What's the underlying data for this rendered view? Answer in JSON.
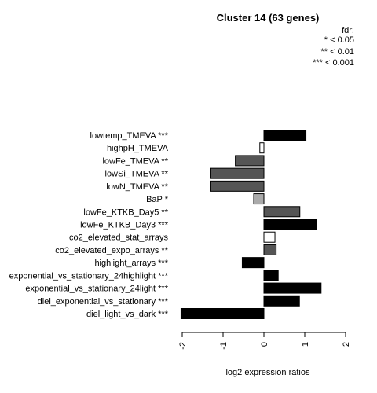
{
  "chart_data": {
    "type": "bar",
    "orientation": "horizontal",
    "title": "Cluster 14 (63 genes)",
    "xlabel": "log2 expression ratios",
    "xlim": [
      -2,
      2
    ],
    "xticks": [
      -2,
      -1,
      0,
      1,
      2
    ],
    "xtick_labels": [
      "-2",
      "-1",
      "0",
      "1",
      "2"
    ],
    "grid": false,
    "legend": {
      "placement": "top-right",
      "title": "fdr:",
      "entries": [
        "* < 0.05",
        "** < 0.01",
        "*** < 0.001"
      ]
    },
    "categories": [
      "lowtemp_TMEVA ***",
      "highpH_TMEVA",
      "lowFe_TMEVA **",
      "lowSi_TMEVA **",
      "lowN_TMEVA **",
      "BaP *",
      "lowFe_KTKB_Day5 **",
      "lowFe_KTKB_Day3 ***",
      "co2_elevated_stat_arrays",
      "co2_elevated_expo_arrays **",
      "highlight_arrays ***",
      "exponential_vs_stationary_24highlight ***",
      "exponential_vs_stationary_24light ***",
      "diel_exponential_vs_stationary ***",
      "diel_light_vs_dark ***"
    ],
    "values": [
      1.03,
      -0.1,
      -0.7,
      -1.3,
      -1.3,
      -0.25,
      0.88,
      1.28,
      0.27,
      0.3,
      -0.53,
      0.35,
      1.4,
      0.87,
      -2.03
    ],
    "colors": [
      "#000000",
      "#ffffff",
      "#555555",
      "#555555",
      "#555555",
      "#aaaaaa",
      "#555555",
      "#000000",
      "#ffffff",
      "#555555",
      "#000000",
      "#000000",
      "#000000",
      "#000000",
      "#000000"
    ]
  }
}
